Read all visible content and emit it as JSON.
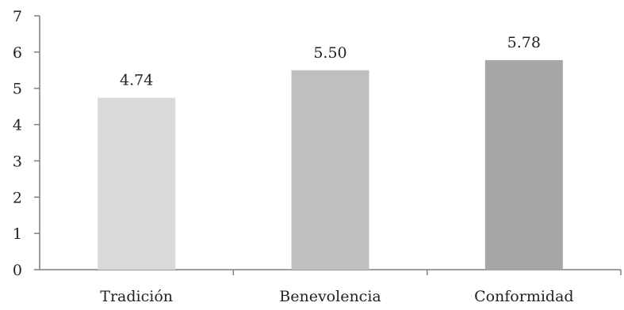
{
  "chart_data": {
    "type": "bar",
    "title": "",
    "xlabel": "",
    "ylabel": "",
    "categories": [
      "Tradición",
      "Benevolencia",
      "Conformidad"
    ],
    "values": [
      4.74,
      5.5,
      5.78
    ],
    "value_labels": [
      "4.74",
      "5.50",
      "5.78"
    ],
    "ylim": [
      0,
      7
    ],
    "yticks": [
      0,
      1,
      2,
      3,
      4,
      5,
      6,
      7
    ],
    "grid": false,
    "legend": "none",
    "colors": [
      "#d9d9d9",
      "#bfbfbf",
      "#a6a6a6"
    ],
    "axis_color": "#7f7f7f"
  }
}
